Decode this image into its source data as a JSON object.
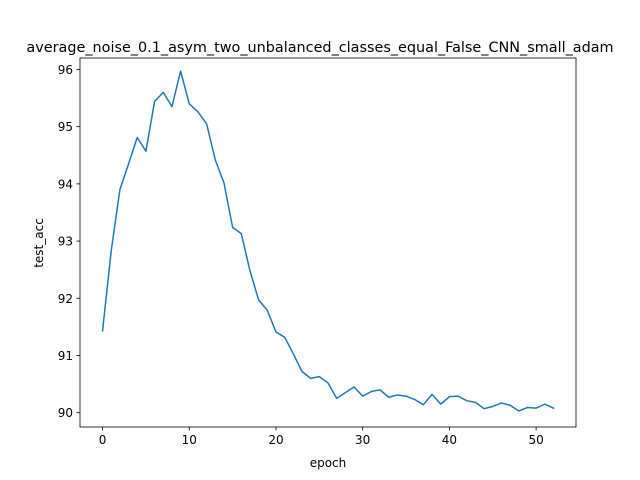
{
  "chart_data": {
    "type": "line",
    "title": "average_noise_0.1_asym_two_unbalanced_classes_equal_False_CNN_small_adam",
    "xlabel": "epoch",
    "ylabel": "test_acc",
    "xlim": [
      -2.6,
      54.6
    ],
    "ylim": [
      89.75,
      96.2
    ],
    "xticks": [
      0,
      10,
      20,
      30,
      40,
      50
    ],
    "yticks": [
      90,
      91,
      92,
      93,
      94,
      95,
      96
    ],
    "grid": false,
    "series": [
      {
        "color": "#1f77b4",
        "x": [
          0,
          1,
          2,
          3,
          4,
          5,
          6,
          7,
          8,
          9,
          10,
          11,
          12,
          13,
          14,
          15,
          16,
          17,
          18,
          19,
          20,
          21,
          22,
          23,
          24,
          25,
          26,
          27,
          28,
          29,
          30,
          31,
          32,
          33,
          34,
          35,
          36,
          37,
          38,
          39,
          40,
          41,
          42,
          43,
          44,
          45,
          46,
          47,
          48,
          49,
          50,
          51,
          52
        ],
        "values": [
          91.43,
          92.83,
          93.9,
          94.35,
          94.81,
          94.57,
          95.44,
          95.6,
          95.35,
          95.97,
          95.4,
          95.26,
          95.05,
          94.42,
          94.02,
          93.24,
          93.13,
          92.48,
          91.97,
          91.79,
          91.41,
          91.32,
          91.03,
          90.72,
          90.6,
          90.63,
          90.52,
          90.25,
          90.35,
          90.45,
          90.29,
          90.37,
          90.4,
          90.27,
          90.31,
          90.29,
          90.23,
          90.14,
          90.32,
          90.15,
          90.28,
          90.29,
          90.21,
          90.18,
          90.07,
          90.11,
          90.17,
          90.13,
          90.03,
          90.09,
          90.08,
          90.15,
          90.08
        ]
      }
    ]
  }
}
